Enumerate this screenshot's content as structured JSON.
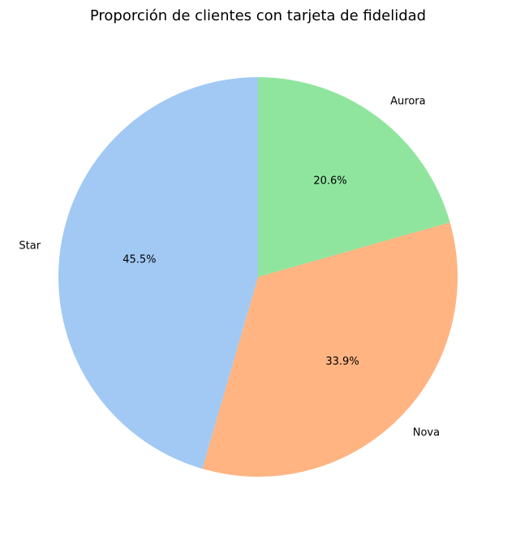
{
  "chart_data": {
    "type": "pie",
    "title": "Proporción de clientes con tarjeta de fidelidad",
    "categories": [
      "Aurora",
      "Nova",
      "Star"
    ],
    "values": [
      20.6,
      33.9,
      45.5
    ],
    "labels": [
      "20.6%",
      "33.9%",
      "45.5%"
    ],
    "colors": [
      "#8fe59e",
      "#ffb482",
      "#a1c9f4"
    ],
    "start_angle_deg": 90,
    "direction": "clockwise"
  }
}
